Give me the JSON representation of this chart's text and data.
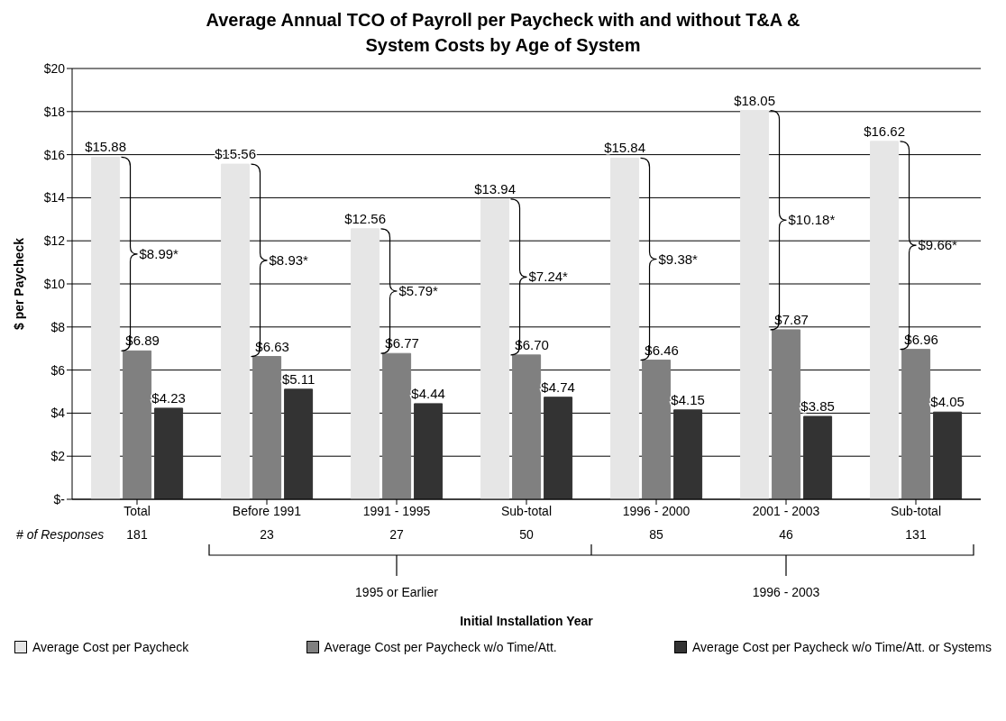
{
  "chart_data": {
    "type": "bar",
    "title": "Average Annual TCO of Payroll per Paycheck with and without T&A & System Costs by Age of System",
    "ylabel": "$ per Paycheck",
    "categories": [
      "Total",
      "Before 1991",
      "1991 - 1995",
      "Sub-total",
      "1996 - 2000",
      "2001 - 2003",
      "Sub-total"
    ],
    "series": [
      {
        "name": "Average Cost per Paycheck",
        "color": "#e6e6e6",
        "values": [
          15.88,
          15.56,
          12.56,
          13.94,
          15.84,
          18.05,
          16.62
        ],
        "value_labels": [
          "$15.88",
          "$15.56",
          "$12.56",
          "$13.94",
          "$15.84",
          "$18.05",
          "$16.62"
        ]
      },
      {
        "name": "Average Cost per Paycheck w/o Time/Att.",
        "color": "#808080",
        "values": [
          6.89,
          6.63,
          6.77,
          6.7,
          6.46,
          7.87,
          6.96
        ],
        "value_labels": [
          "$6.89",
          "$6.63",
          "$6.77",
          "$6.70",
          "$6.46",
          "$7.87",
          "$6.96"
        ]
      },
      {
        "name": "Average Cost per Paycheck w/o Time/Att. or Systems",
        "color": "#333333",
        "values": [
          4.23,
          5.11,
          4.44,
          4.74,
          4.15,
          3.85,
          4.05
        ],
        "value_labels": [
          "$4.23",
          "$5.11",
          "$4.44",
          "$4.74",
          "$4.15",
          "$3.85",
          "$4.05"
        ]
      }
    ],
    "ylim": [
      0,
      20
    ],
    "yticks": [
      {
        "value": 0,
        "label": "$-"
      },
      {
        "value": 2,
        "label": "$2"
      },
      {
        "value": 4,
        "label": "$4"
      },
      {
        "value": 6,
        "label": "$6"
      },
      {
        "value": 8,
        "label": "$8"
      },
      {
        "value": 10,
        "label": "$10"
      },
      {
        "value": 12,
        "label": "$12"
      },
      {
        "value": 14,
        "label": "$14"
      },
      {
        "value": 16,
        "label": "$16"
      },
      {
        "value": 18,
        "label": "$18"
      },
      {
        "value": 20,
        "label": "$20"
      }
    ],
    "grid": "y",
    "legend": "bottom",
    "annotations": [
      "$8.99*",
      "$8.93*",
      "$5.79*",
      "$7.24*",
      "$9.38*",
      "$10.18*",
      "$9.66*",
      "# of Responses",
      "181",
      "23",
      "27",
      "50",
      "85",
      "46",
      "131",
      "1995 or Earlier",
      "1996 - 2003",
      "Initial Installation Year"
    ]
  }
}
